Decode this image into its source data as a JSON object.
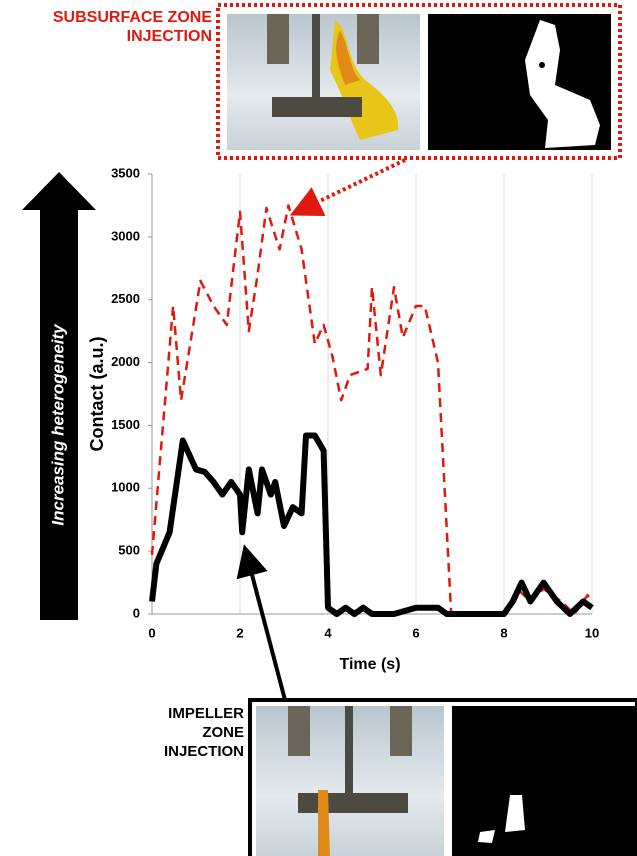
{
  "chart_data": {
    "type": "line",
    "xlabel": "Time (s)",
    "ylabel": "Contact (a.u.)",
    "xlim": [
      0,
      10
    ],
    "xticks": [
      0,
      2,
      4,
      6,
      8,
      10
    ],
    "ylim": [
      0,
      3500
    ],
    "yticks": [
      0,
      500,
      1000,
      1500,
      2000,
      2500,
      3000,
      3500
    ],
    "grid": "x",
    "series": [
      {
        "color": "#e0190f",
        "style": "dashed",
        "x": [
          0,
          0.48,
          0.66,
          0.8,
          1.1,
          1.4,
          1.7,
          2.0,
          2.2,
          2.4,
          2.6,
          2.9,
          3.1,
          3.4,
          3.7,
          3.9,
          4.1,
          4.3,
          4.5,
          4.9,
          5.0,
          5.2,
          5.5,
          5.7,
          6.0,
          6.2,
          6.5,
          6.8,
          7.5,
          8.0,
          8.3,
          8.6,
          8.9,
          9.3,
          9.6,
          9.9,
          10
        ],
        "values": [
          470,
          2450,
          1700,
          2000,
          2650,
          2450,
          2300,
          3200,
          2250,
          2700,
          3230,
          2900,
          3250,
          2900,
          2150,
          2300,
          2050,
          1700,
          1900,
          1950,
          2600,
          1900,
          2600,
          2200,
          2450,
          2450,
          2000,
          0,
          0,
          0,
          200,
          100,
          200,
          100,
          0,
          150,
          100
        ]
      },
      {
        "color": "#000000",
        "style": "solid",
        "x": [
          0,
          0.1,
          0.4,
          0.7,
          1.0,
          1.2,
          1.4,
          1.6,
          1.8,
          2.0,
          2.05,
          2.2,
          2.4,
          2.5,
          2.7,
          2.8,
          3.0,
          3.2,
          3.4,
          3.5,
          3.7,
          3.9,
          4.0,
          4.2,
          4.4,
          4.6,
          4.8,
          5.0,
          5.5,
          6.0,
          6.5,
          6.7,
          7.0,
          8.0,
          8.2,
          8.4,
          8.6,
          8.9,
          9.2,
          9.5,
          9.8,
          10
        ],
        "values": [
          100,
          400,
          650,
          1380,
          1150,
          1130,
          1050,
          950,
          1050,
          950,
          650,
          1150,
          800,
          1150,
          950,
          1050,
          700,
          850,
          800,
          1420,
          1420,
          1300,
          50,
          0,
          50,
          0,
          50,
          0,
          0,
          50,
          50,
          0,
          0,
          0,
          100,
          250,
          100,
          250,
          100,
          0,
          100,
          50
        ]
      }
    ],
    "annotations": [
      "SUBSURFACE ZONE INJECTION",
      "IMPELLER ZONE INJECTION",
      "Increasing heterogeneity"
    ]
  }
}
